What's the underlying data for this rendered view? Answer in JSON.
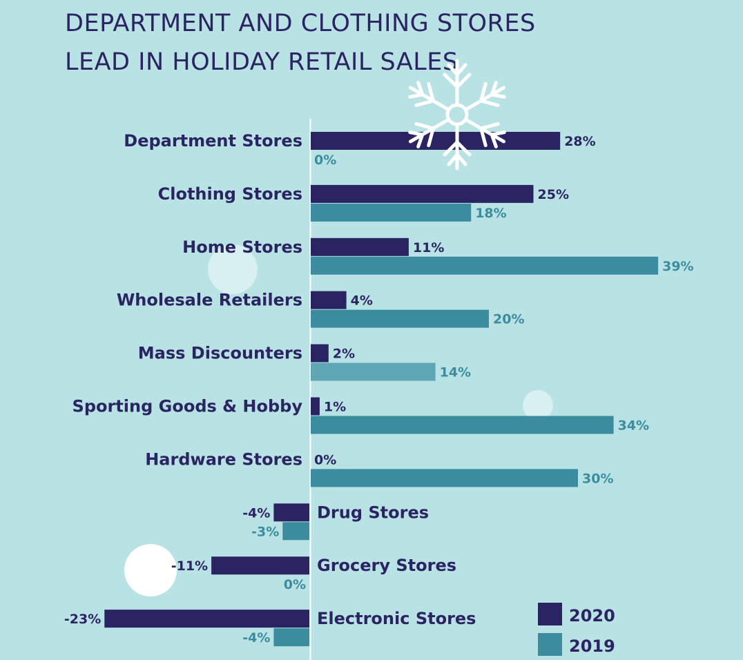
{
  "header": {
    "title_line1": "DEPARTMENT AND CLOTHING STORES",
    "title_line2": "LEAD IN HOLIDAY RETAIL SALES"
  },
  "colors": {
    "background": "#b8e2e3",
    "series_2020": "#2b2463",
    "series_2019": "#3a8c9e",
    "highlight_2019_mass_discounters": "#5fa7b5"
  },
  "decorations": [
    "snowflake-icon",
    "circle",
    "circle",
    "circle"
  ],
  "chart_data": {
    "type": "bar",
    "orientation": "horizontal",
    "categories": [
      "Department Stores",
      "Clothing Stores",
      "Home Stores",
      "Wholesale Retailers",
      "Mass Discounters",
      "Sporting Goods & Hobby",
      "Hardware Stores",
      "Drug Stores",
      "Grocery Stores",
      "Electronic Stores"
    ],
    "series": [
      {
        "name": "2020",
        "values": [
          28,
          25,
          11,
          4,
          2,
          1,
          0,
          -4,
          -11,
          -23
        ]
      },
      {
        "name": "2019",
        "values": [
          0,
          18,
          39,
          20,
          14,
          34,
          30,
          -3,
          0,
          -4
        ]
      }
    ],
    "value_labels": {
      "2020": [
        "28%",
        "25%",
        "11%",
        "4%",
        "2%",
        "1%",
        "0%",
        "-4%",
        "-11%",
        "-23%"
      ],
      "2019": [
        "0%",
        "18%",
        "39%",
        "20%",
        "14%",
        "34%",
        "30%",
        "-3%",
        "0%",
        "-4%"
      ]
    },
    "unit": "%",
    "legend": [
      "2020",
      "2019"
    ],
    "legend_position": "bottom-right",
    "grid": false
  }
}
